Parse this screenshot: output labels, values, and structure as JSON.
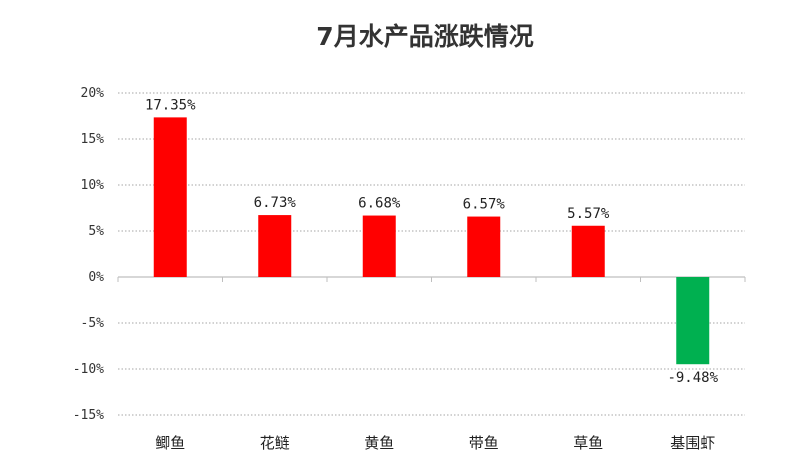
{
  "chart_data": {
    "type": "bar",
    "title": "7月水产品涨跌情况",
    "xlabel": "",
    "ylabel": "",
    "categories": [
      "鲫鱼",
      "花鲢",
      "黄鱼",
      "带鱼",
      "草鱼",
      "基围虾"
    ],
    "values": [
      17.35,
      6.73,
      6.68,
      6.57,
      5.57,
      -9.48
    ],
    "data_labels": [
      "17.35%",
      "6.73%",
      "6.68%",
      "6.57%",
      "5.57%",
      "-9.48%"
    ],
    "yticks": [
      {
        "value": 20,
        "label": "20%"
      },
      {
        "value": 15,
        "label": "15%"
      },
      {
        "value": 10,
        "label": "10%"
      },
      {
        "value": 5,
        "label": "5%"
      },
      {
        "value": 0,
        "label": "0%"
      },
      {
        "value": -5,
        "label": "-5%"
      },
      {
        "value": -10,
        "label": "-10%"
      },
      {
        "value": -15,
        "label": "-15%"
      }
    ],
    "ylim": [
      -15,
      20
    ],
    "grid": true,
    "legend": "none",
    "colors": {
      "positive": "#ff0000",
      "negative": "#00b050",
      "grid": "#a6a6a6",
      "axis": "#bfbfbf"
    }
  }
}
